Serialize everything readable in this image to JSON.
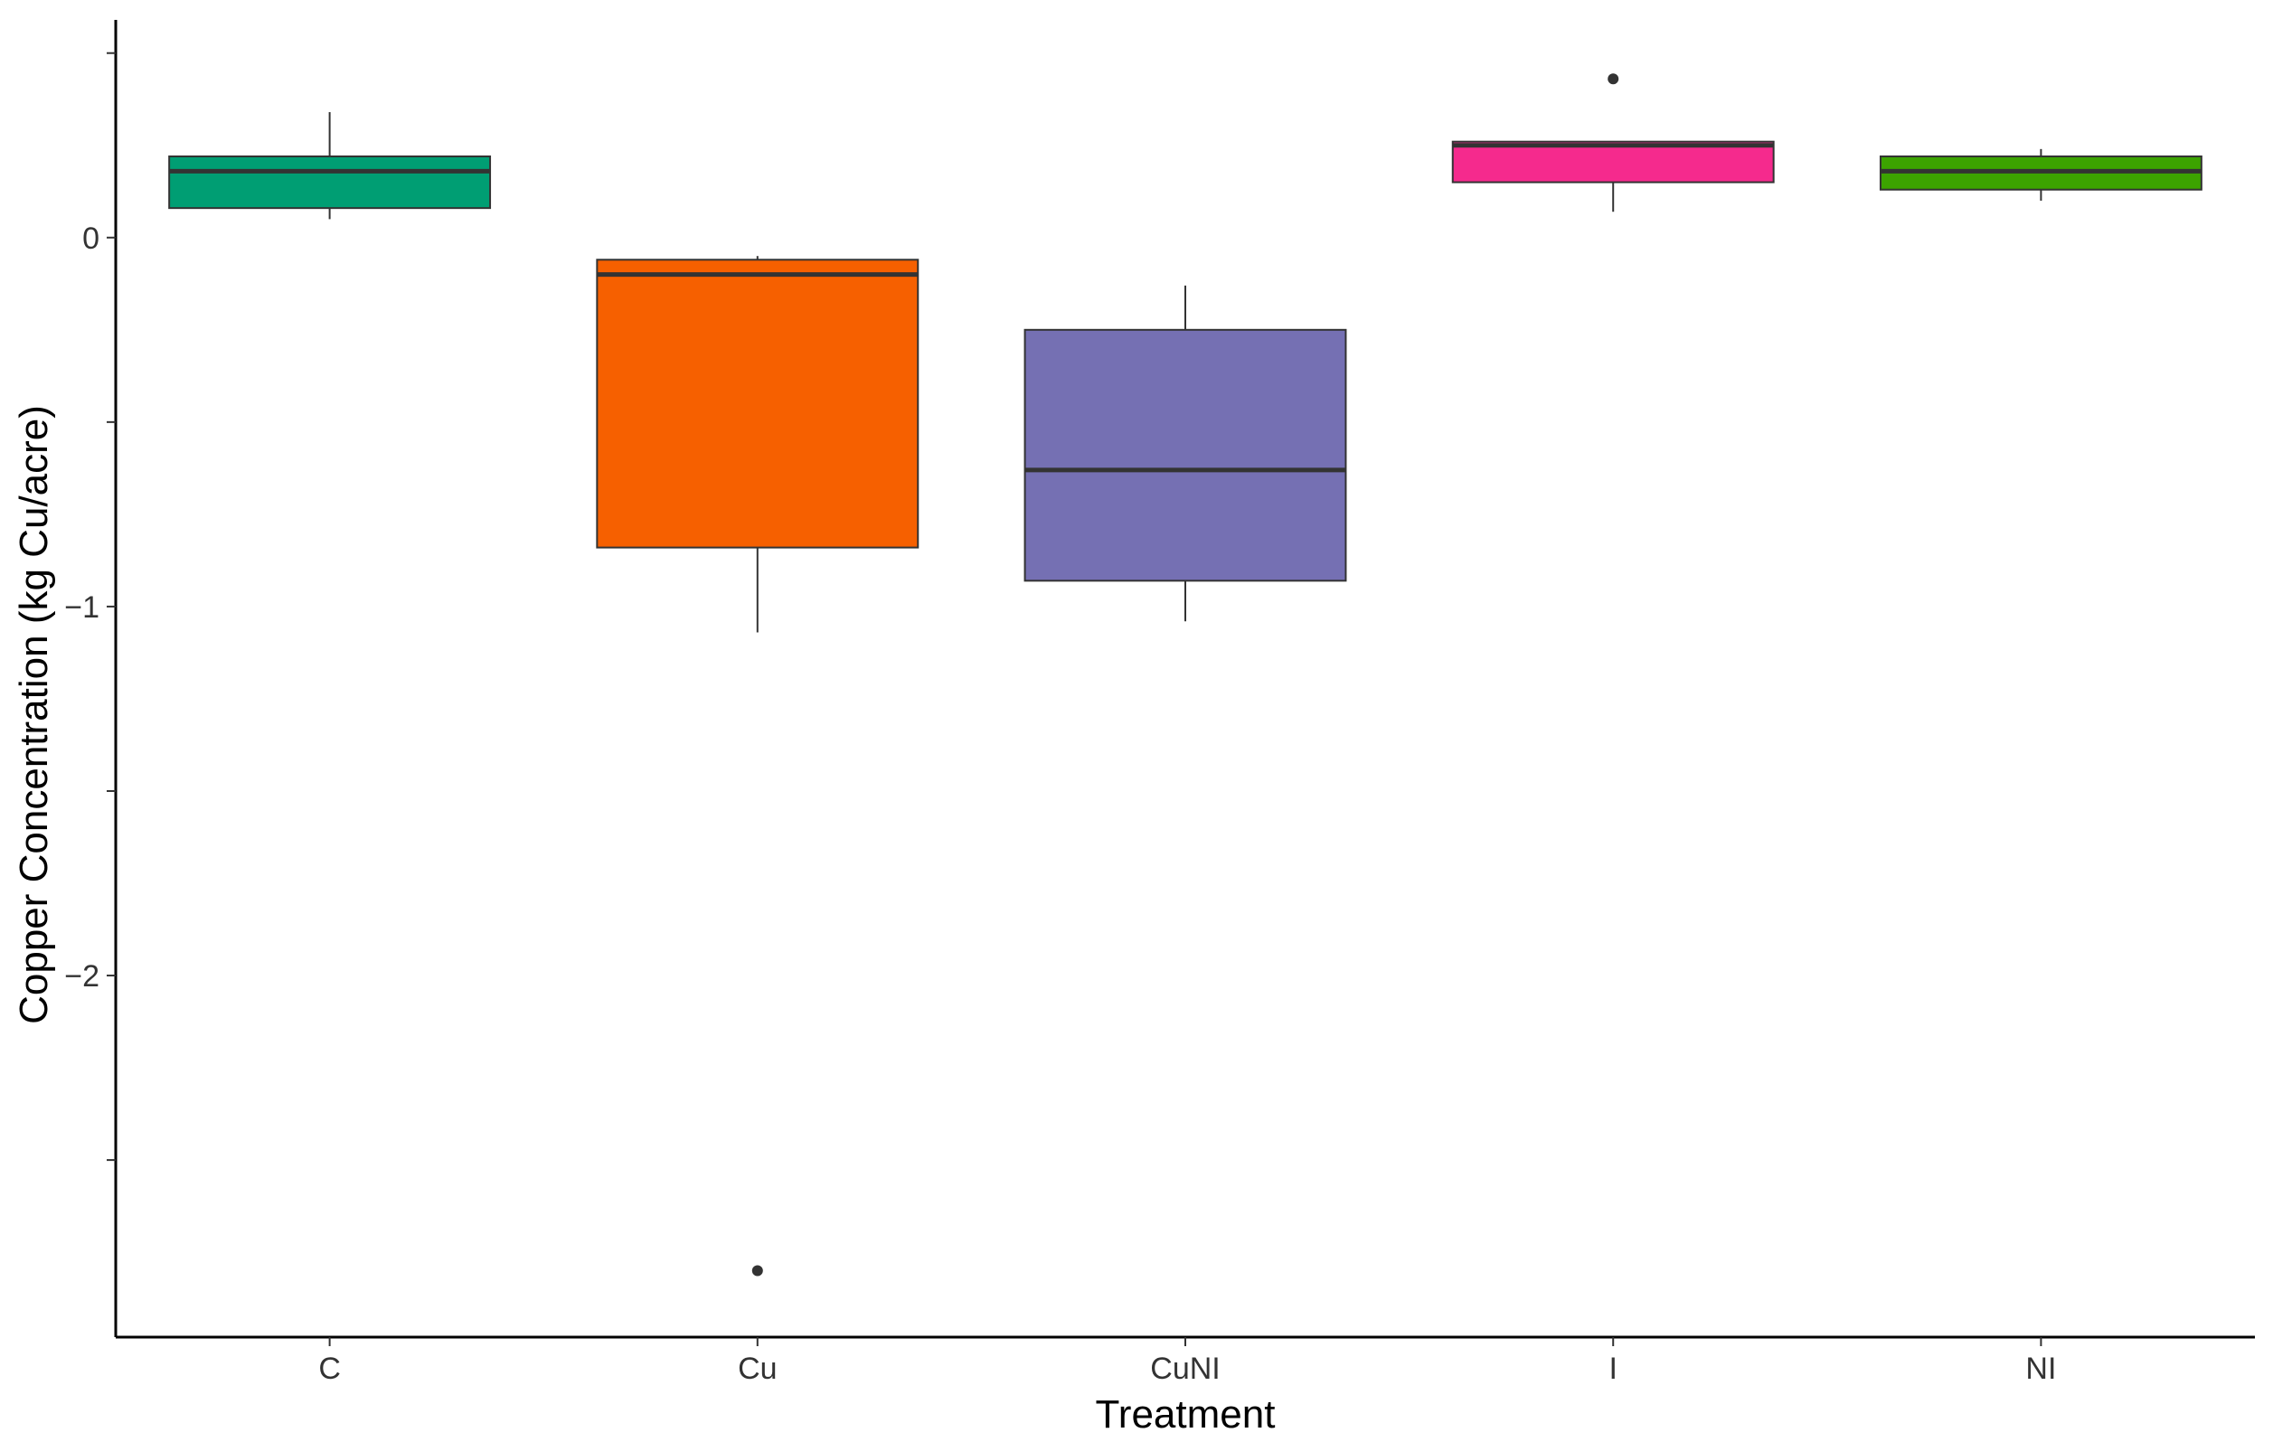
{
  "chart_data": {
    "type": "box",
    "xlabel": "Treatment",
    "ylabel": "Copper Concentration (kg Cu/acre)",
    "ylim": [
      -2.98,
      0.59
    ],
    "y_major_ticks": [
      0,
      -1,
      -2
    ],
    "y_minor_ticks": [
      0.5,
      -0.5,
      -1.5,
      -2.5
    ],
    "y_tick_labels": [
      "0",
      "−1",
      "−2"
    ],
    "grid": false,
    "legend": "none",
    "categories": [
      "C",
      "Cu",
      "CuNI",
      "I",
      "NI"
    ],
    "boxes": [
      {
        "category": "C",
        "whisker_low": 0.05,
        "q1": 0.08,
        "median": 0.18,
        "q3": 0.22,
        "whisker_high": 0.34,
        "outliers": [],
        "color": "#009E73"
      },
      {
        "category": "Cu",
        "whisker_low": -1.07,
        "q1": -0.84,
        "median": -0.1,
        "q3": -0.06,
        "whisker_high": -0.05,
        "outliers": [
          -2.8
        ],
        "color": "#F66000"
      },
      {
        "category": "CuNI",
        "whisker_low": -1.04,
        "q1": -0.93,
        "median": -0.63,
        "q3": -0.25,
        "whisker_high": -0.13,
        "outliers": [],
        "color": "#7570B3"
      },
      {
        "category": "I",
        "whisker_low": 0.07,
        "q1": 0.15,
        "median": 0.25,
        "q3": 0.26,
        "whisker_high": 0.26,
        "outliers": [
          0.43
        ],
        "color": "#F52A8D"
      },
      {
        "category": "NI",
        "whisker_low": 0.1,
        "q1": 0.13,
        "median": 0.18,
        "q3": 0.22,
        "whisker_high": 0.24,
        "outliers": [],
        "color": "#3CA300"
      }
    ]
  }
}
